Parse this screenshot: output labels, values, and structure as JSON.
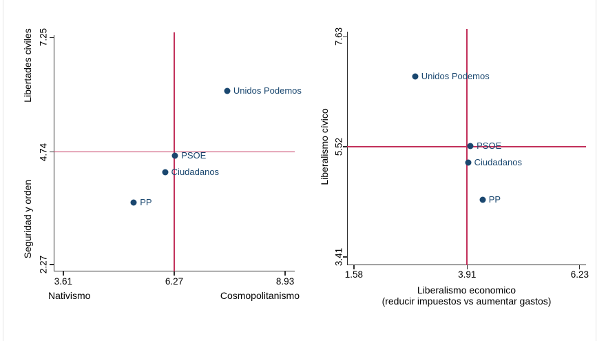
{
  "page": {
    "background": "#ffffff"
  },
  "colors": {
    "marker": "#1a476f",
    "marker_label": "#1a476f",
    "crosshair": "#c2305a",
    "axis": "#2e2e2e",
    "tick_text": "#000000"
  },
  "chart_data": [
    {
      "type": "scatter",
      "title": "",
      "y_axis_titles": [
        "Libertades civiles",
        "Seguridad y orden"
      ],
      "x_axis_title_left": "Nativismo",
      "x_axis_title_right": "Cosmopolitanismo",
      "x_tick_labels": [
        "3.61",
        "6.27",
        "8.93"
      ],
      "x_tick_values": [
        3.61,
        6.27,
        8.93
      ],
      "y_tick_labels": [
        "7.25",
        "4.74",
        "2.27"
      ],
      "y_tick_values": [
        7.25,
        4.74,
        2.27
      ],
      "xlim": [
        3.38,
        9.16
      ],
      "ylim": [
        2.12,
        7.36
      ],
      "grid": false,
      "crosshair": {
        "x": 6.27,
        "y": 4.74
      },
      "points": [
        {
          "label": "Unidos Podemos",
          "x": 7.54,
          "y": 6.07
        },
        {
          "label": "PSOE",
          "x": 6.29,
          "y": 4.65
        },
        {
          "label": "Ciudadanos",
          "x": 6.05,
          "y": 4.3
        },
        {
          "label": "PP",
          "x": 5.3,
          "y": 3.63
        }
      ]
    },
    {
      "type": "scatter",
      "title": "",
      "y_axis_titles": [
        "Liberalismo cívico"
      ],
      "x_axis_title_lines": [
        "Liberalismo economico",
        "(reducir impuestos vs aumentar gastos)"
      ],
      "x_tick_labels": [
        "1.58",
        "3.91",
        "6.23"
      ],
      "x_tick_values": [
        1.58,
        3.91,
        6.23
      ],
      "y_tick_labels": [
        "7.63",
        "5.52",
        "3.41"
      ],
      "y_tick_values": [
        7.63,
        5.52,
        3.41
      ],
      "xlim": [
        1.44,
        6.36
      ],
      "ylim": [
        3.25,
        7.78
      ],
      "grid": false,
      "crosshair": {
        "x": 3.91,
        "y": 5.52
      },
      "points": [
        {
          "label": "Unidos Podemos",
          "x": 2.84,
          "y": 6.87
        },
        {
          "label": "PSOE",
          "x": 3.98,
          "y": 5.54
        },
        {
          "label": "Ciudadanos",
          "x": 3.93,
          "y": 5.22
        },
        {
          "label": "PP",
          "x": 4.23,
          "y": 4.5
        }
      ]
    }
  ]
}
